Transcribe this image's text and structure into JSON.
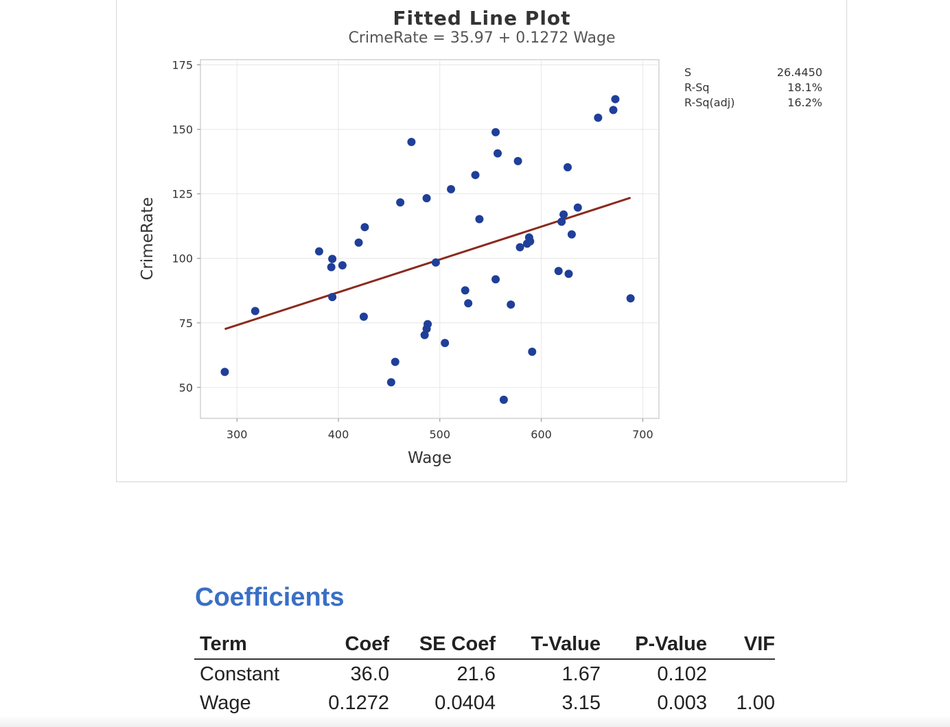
{
  "chart_data": {
    "type": "scatter",
    "title": "Fitted Line Plot",
    "subtitle": "CrimeRate = 35.97 + 0.1272 Wage",
    "xlabel": "Wage",
    "ylabel": "CrimeRate",
    "xlim": [
      264,
      716
    ],
    "ylim": [
      38,
      177
    ],
    "xticks": [
      300,
      400,
      500,
      600,
      700
    ],
    "yticks": [
      50,
      75,
      100,
      125,
      150,
      175
    ],
    "grid": true,
    "fit": {
      "intercept": 35.97,
      "slope": 0.1272,
      "x_range": [
        288,
        688
      ],
      "color": "#8b2a1e"
    },
    "point_color": "#1f3f99",
    "points": [
      [
        288,
        56
      ],
      [
        318,
        79.6
      ],
      [
        381,
        102.7
      ],
      [
        394,
        99.8
      ],
      [
        393,
        96.6
      ],
      [
        394,
        85
      ],
      [
        404,
        97.3
      ],
      [
        420,
        106.1
      ],
      [
        425,
        77.4
      ],
      [
        426,
        112.1
      ],
      [
        452,
        52
      ],
      [
        456,
        59.9
      ],
      [
        461,
        121.7
      ],
      [
        472,
        145.1
      ],
      [
        485,
        70.3
      ],
      [
        487,
        72.7
      ],
      [
        487,
        123.3
      ],
      [
        488,
        74.5
      ],
      [
        496,
        98.4
      ],
      [
        505,
        67.2
      ],
      [
        511,
        126.8
      ],
      [
        525,
        87.6
      ],
      [
        528,
        82.6
      ],
      [
        535,
        132.3
      ],
      [
        539,
        115.2
      ],
      [
        555,
        148.9
      ],
      [
        555,
        91.9
      ],
      [
        557,
        140.7
      ],
      [
        563,
        45.2
      ],
      [
        570,
        82.1
      ],
      [
        577,
        137.7
      ],
      [
        579,
        104.3
      ],
      [
        586,
        105.7
      ],
      [
        588,
        108.1
      ],
      [
        589,
        106.6
      ],
      [
        591,
        63.8
      ],
      [
        617,
        95.1
      ],
      [
        620,
        114.2
      ],
      [
        622,
        117
      ],
      [
        626,
        135.3
      ],
      [
        627,
        94
      ],
      [
        630,
        109.3
      ],
      [
        636,
        119.7
      ],
      [
        656,
        154.5
      ],
      [
        671,
        157.5
      ],
      [
        673,
        161.7
      ],
      [
        688,
        84.5
      ]
    ]
  },
  "stats": {
    "s_label": "S",
    "s_value": "26.4450",
    "rsq_label": "R-Sq",
    "rsq_value": "18.1%",
    "rsqadj_label": "R-Sq(adj)",
    "rsqadj_value": "16.2%"
  },
  "coefficients": {
    "heading": "Coefficients",
    "columns": [
      "Term",
      "Coef",
      "SE Coef",
      "T-Value",
      "P-Value",
      "VIF"
    ],
    "rows": [
      [
        "Constant",
        "36.0",
        "21.6",
        "1.67",
        "0.102",
        ""
      ],
      [
        "Wage",
        "0.1272",
        "0.0404",
        "3.15",
        "0.003",
        "1.00"
      ]
    ]
  }
}
